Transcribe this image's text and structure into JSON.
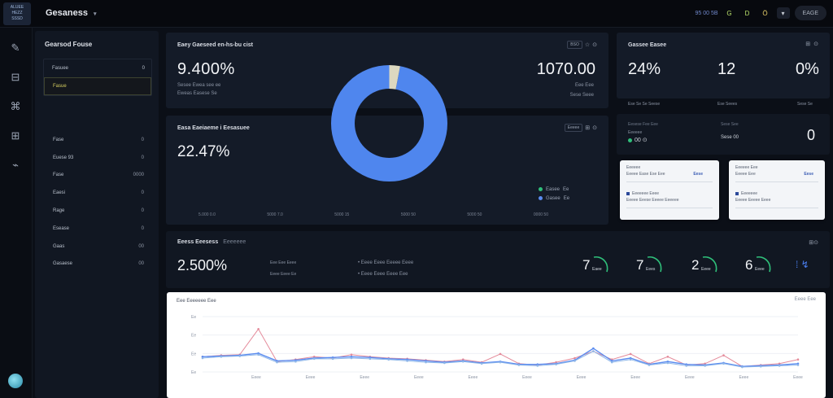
{
  "app": {
    "logo_lines": [
      "ALUEE",
      "HEZZ",
      "SSSD"
    ],
    "title": "Gesaness",
    "caret": "▾"
  },
  "topbar": {
    "chip": "95 00 5B",
    "icon1": "G",
    "icon2": "D",
    "icon3": "Ö",
    "icon4": "▾",
    "button_label": "EAGE"
  },
  "rail": {
    "icons": [
      "✎",
      "⊟",
      "⌘",
      "⊞",
      "⌁"
    ]
  },
  "side": {
    "title": "Gearsod Fouse",
    "list": [
      {
        "label": "Fasuee",
        "value": "0"
      },
      {
        "label": "Fasue",
        "value": ""
      }
    ],
    "rows": [
      {
        "label": "Fase",
        "value": "0"
      },
      {
        "label": "Euese 93",
        "value": "0"
      },
      {
        "label": "Fase",
        "value": "0000"
      },
      {
        "label": "Eaesi",
        "value": "0"
      },
      {
        "label": "Rage",
        "value": "0"
      },
      {
        "label": "Esease",
        "value": "0"
      },
      {
        "label": "Gaas",
        "value": "00"
      },
      {
        "label": "Gasaese",
        "value": "00"
      }
    ]
  },
  "card1": {
    "title": "Eaey Gaeseed en-hs-bu cist",
    "big_value": "9.400%",
    "sub1": "Sesee Ewea see ee",
    "sub2": "Eweas Easese Se",
    "right_value": "1070.00",
    "right_sub1": "Eee Eee",
    "right_sub2": "Sese Seee",
    "tool_chip": "BSO",
    "tool_icons": [
      "☆",
      "⊙"
    ]
  },
  "card2": {
    "title": "Easa Eaeiaeme i Eesasuee",
    "big_value": "22.47%",
    "tool_chip": "Eeeee",
    "tool_icons": [
      "⊞",
      "⊙"
    ],
    "axis": [
      "5.000 0.0",
      "5000 7.0",
      "5000 15",
      "5000 50",
      "5000 50",
      "0000 50"
    ],
    "legend": [
      {
        "label": "Easee",
        "value": "Ee",
        "color": "#2fbf7a"
      },
      {
        "label": "Gasee",
        "value": "Ee",
        "color": "#5b8cf0"
      }
    ]
  },
  "donut": {
    "main_share": 0.97,
    "main_color": "#4f86ee",
    "gap_color": "#dcd8c0"
  },
  "right_top": {
    "title": "Gassee Easee",
    "tool_icons": [
      "⊞",
      "⊙"
    ],
    "stats": [
      {
        "value": "24%",
        "label": "Ese Se Se Seese"
      },
      {
        "value": "12",
        "label": "Ese Seees"
      },
      {
        "value": "0%",
        "label": "Sese Se"
      }
    ]
  },
  "right_mid": {
    "sub1": "Eesese Fee Eee",
    "sub2": "Eeeeee",
    "dots_text": "00 ⊙",
    "mid1": "Sese See",
    "mid2": "Sese 00",
    "zero": "0"
  },
  "mini_cards": [
    {
      "line1": "Eeeeee",
      "line2": "Eeeee Ease Ese Eee",
      "badge": "Eese",
      "line3": "Eeeeeee Eeee",
      "line4": "Eeeee Eeese Eeeee Eeeeee"
    },
    {
      "line1": "Eeeeee Eee",
      "line2": "Eeeee Eee",
      "badge": "Eese",
      "line3": "Eeeeeee",
      "line4": "Eeeee Eeeee Eeee"
    }
  ],
  "stats_strip": {
    "title": "Eeess Eeesess",
    "title_muted": "Eeeeeee",
    "big_value": "2.500%",
    "mid_lines": [
      "Eee Eee Eeee",
      "Eeee Eeee Ee"
    ],
    "bullets": [
      "Eeee Eeee Eeeee Eeee",
      "Eeee Eeee Eeee Eee"
    ],
    "gauges": [
      {
        "num": "7",
        "label": "Eaee"
      },
      {
        "num": "7",
        "label": "Eees"
      },
      {
        "num": "2",
        "label": "Eeee"
      },
      {
        "num": "6",
        "label": "Eeee"
      }
    ],
    "tool": "⊞⊙"
  },
  "line_chart": {
    "title": "Eee Eeeeeee Eee",
    "tool": "Eeee Eee",
    "y_ticks": [
      "Ee",
      "Ee",
      "Ee",
      "Ee"
    ],
    "x_ticks": [
      "Eeee",
      "Eeee",
      "Eeee",
      "Eeee",
      "Eeee",
      "Eeee",
      "Eeee",
      "Eeee",
      "Eeee",
      "Eeee",
      "Eeee"
    ],
    "series": [
      {
        "color": "#e48a9a",
        "values": [
          22,
          24,
          25,
          62,
          15,
          18,
          22,
          20,
          25,
          22,
          20,
          19,
          17,
          15,
          18,
          14,
          26,
          12,
          10,
          14,
          20,
          30,
          18,
          26,
          12,
          22,
          10,
          12,
          24,
          8,
          10,
          12,
          18
        ]
      },
      {
        "color": "#5b8cf0",
        "values": [
          22,
          23,
          24,
          27,
          16,
          17,
          20,
          21,
          22,
          21,
          19,
          18,
          16,
          14,
          16,
          13,
          15,
          11,
          11,
          12,
          17,
          34,
          16,
          20,
          11,
          15,
          11,
          10,
          13,
          8,
          9,
          10,
          12
        ]
      },
      {
        "color": "#8fb7e8",
        "values": [
          20,
          22,
          23,
          25,
          14,
          15,
          19,
          19,
          20,
          19,
          18,
          16,
          14,
          13,
          15,
          12,
          14,
          10,
          9,
          11,
          16,
          30,
          14,
          18,
          10,
          13,
          9,
          9,
          12,
          7,
          8,
          9,
          10
        ]
      }
    ],
    "y_max": 80
  }
}
